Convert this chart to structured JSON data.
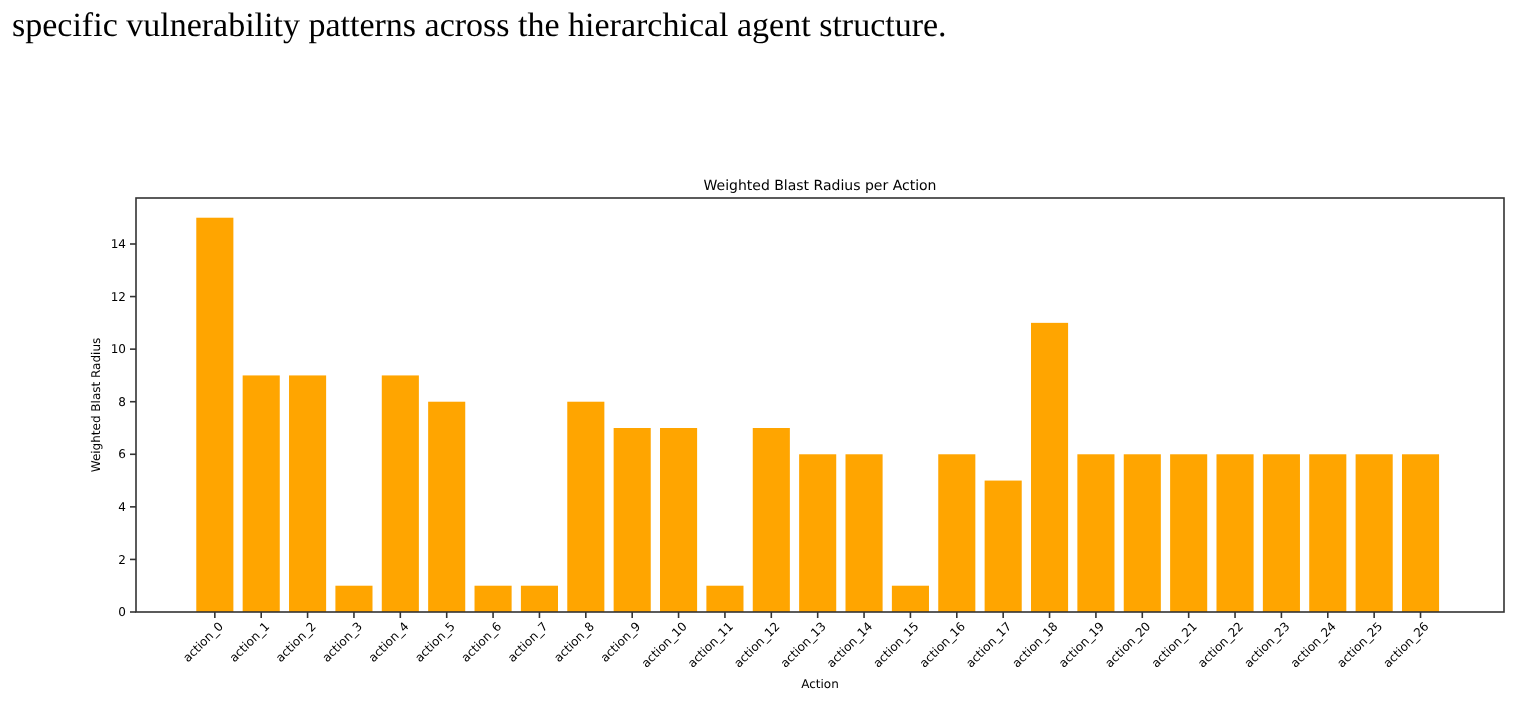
{
  "chart_data": {
    "type": "bar",
    "title": "Weighted Blast Radius per Action",
    "xlabel": "Action",
    "ylabel": "Weighted Blast Radius",
    "categories": [
      "action_0",
      "action_1",
      "action_2",
      "action_3",
      "action_4",
      "action_5",
      "action_6",
      "action_7",
      "action_8",
      "action_9",
      "action_10",
      "action_11",
      "action_12",
      "action_13",
      "action_14",
      "action_15",
      "action_16",
      "action_17",
      "action_18",
      "action_19",
      "action_20",
      "action_21",
      "action_22",
      "action_23",
      "action_24",
      "action_25",
      "action_26"
    ],
    "values": [
      15,
      9,
      9,
      1,
      9,
      8,
      1,
      1,
      8,
      7,
      7,
      1,
      7,
      6,
      6,
      1,
      6,
      5,
      11,
      6,
      6,
      6,
      6,
      6,
      6,
      6,
      6
    ],
    "color": "#ffa500",
    "ylim": [
      0,
      15.75
    ],
    "yticks": [
      0,
      2,
      4,
      6,
      8,
      10,
      12,
      14
    ],
    "grid": false,
    "annotations": [
      "specific vulnerability patterns across the hierarchical agent structure."
    ]
  }
}
